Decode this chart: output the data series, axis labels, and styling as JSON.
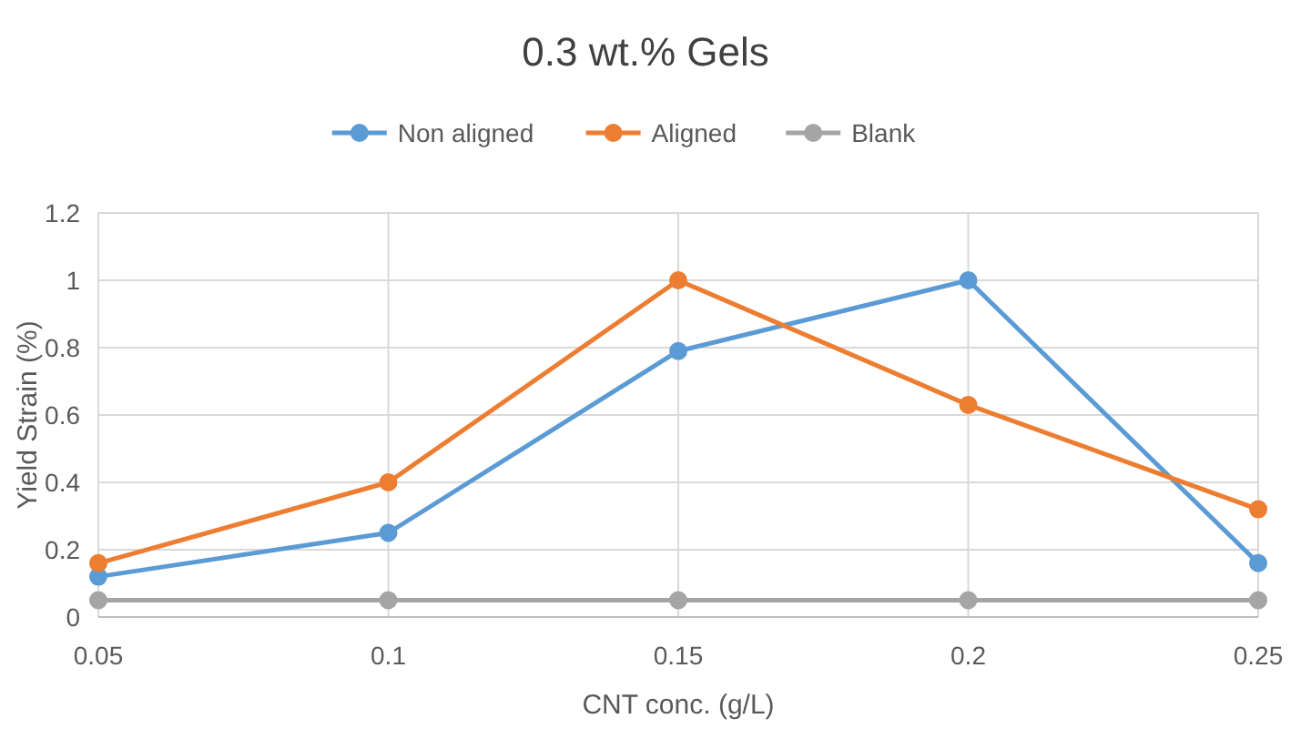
{
  "chart_data": {
    "type": "line",
    "title": "0.3 wt.% Gels",
    "xlabel": "CNT conc. (g/L)",
    "ylabel": "Yield Strain (%)",
    "x": [
      0.05,
      0.1,
      0.15,
      0.2,
      0.25
    ],
    "series": [
      {
        "name": "Non aligned",
        "color": "#5b9bd5",
        "values": [
          0.12,
          0.25,
          0.79,
          1,
          0.16
        ]
      },
      {
        "name": "Aligned",
        "color": "#ed7d31",
        "values": [
          0.16,
          0.4,
          1,
          0.63,
          0.32
        ]
      },
      {
        "name": "Blank",
        "color": "#a5a5a5",
        "values": [
          0.05,
          0.05,
          0.05,
          0.05,
          0.05
        ]
      }
    ],
    "xlim": [
      0.05,
      0.25
    ],
    "xticks": [
      0.05,
      0.1,
      0.15,
      0.2,
      0.25
    ],
    "ylim": [
      0,
      1.2
    ],
    "yticks": [
      0,
      0.2,
      0.4,
      0.6,
      0.8,
      1,
      1.2
    ],
    "grid": true,
    "legend": "top",
    "marker": "circle",
    "line_style": "solid"
  }
}
